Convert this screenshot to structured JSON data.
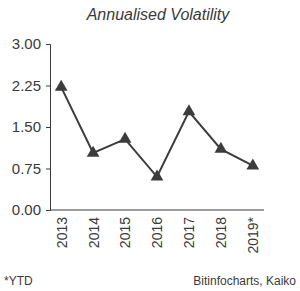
{
  "chart_data": {
    "type": "line",
    "title": "Annualised Volatility",
    "categories": [
      "2013",
      "2014",
      "2015",
      "2016",
      "2017",
      "2018",
      "2019*"
    ],
    "values": [
      2.22,
      1.03,
      1.28,
      0.6,
      1.78,
      1.1,
      0.8
    ],
    "color": "#3c3c3c",
    "marker": "triangle",
    "line_style": "solid",
    "grid": false,
    "ylim": [
      0,
      3
    ],
    "yticks": [
      {
        "value": 0,
        "label": "0.00"
      },
      0.75,
      {
        "value": 1.5,
        "label": "1.50"
      },
      2.25,
      {
        "value": 3,
        "label": "3.00"
      }
    ],
    "annotations": [
      "*YTD",
      "Bitinfocharts, Kaiko"
    ]
  }
}
